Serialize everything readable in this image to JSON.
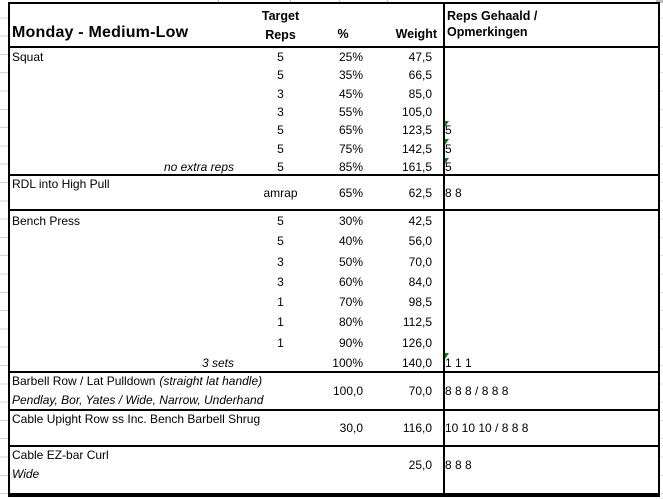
{
  "header": {
    "title": "Monday - Medium-Low",
    "target": "Target",
    "reps": "Reps",
    "percent": "%",
    "weight": "Weight",
    "result_line1": "Reps Gehaald /",
    "result_line2": "Opmerkingen"
  },
  "colors": {
    "flag_green": "#0e7d13",
    "gridline_gray": "#d4d4d4",
    "border_black": "#000000"
  },
  "icons": {
    "comment_indicator": "green-corner-triangle"
  },
  "sections": [
    {
      "type": "rows",
      "name": "Squat",
      "rows": [
        {
          "reps": "5",
          "pct": "25%",
          "weight": "47,5"
        },
        {
          "reps": "5",
          "pct": "35%",
          "weight": "66,5"
        },
        {
          "reps": "3",
          "pct": "45%",
          "weight": "85,0"
        },
        {
          "reps": "3",
          "pct": "55%",
          "weight": "105,0"
        },
        {
          "reps": "5",
          "pct": "65%",
          "weight": "123,5",
          "result": "5",
          "flag": true
        },
        {
          "reps": "5",
          "pct": "75%",
          "weight": "142,5",
          "result": "5",
          "flag": true
        },
        {
          "note": "no extra reps",
          "reps": "5",
          "pct": "85%",
          "weight": "161,5",
          "result": "5",
          "flag": true
        }
      ]
    },
    {
      "type": "block",
      "name": "RDL into High Pull",
      "reps": "amrap",
      "pct": "65%",
      "weight": "62,5",
      "result": "8 8"
    },
    {
      "type": "rows",
      "name": "Bench Press",
      "rows": [
        {
          "reps": "5",
          "pct": "30%",
          "weight": "42,5"
        },
        {
          "reps": "5",
          "pct": "40%",
          "weight": "56,0"
        },
        {
          "reps": "3",
          "pct": "50%",
          "weight": "70,0"
        },
        {
          "reps": "3",
          "pct": "60%",
          "weight": "84,0"
        },
        {
          "reps": "1",
          "pct": "70%",
          "weight": "98,5"
        },
        {
          "reps": "1",
          "pct": "80%",
          "weight": "112,5"
        },
        {
          "reps": "1",
          "pct": "90%",
          "weight": "126,0"
        },
        {
          "note": "3 sets",
          "pct": "100%",
          "weight": "140,0",
          "result": "1 1 1",
          "flag": true
        }
      ]
    },
    {
      "type": "block",
      "name": "Barbell Row / Lat Pulldown",
      "name_suffix_italic": "(straight lat handle)",
      "subtitle": "Pendlay, Bor, Yates / Wide, Narrow, Underhand",
      "pct": "100,0",
      "weight": "70,0",
      "result": "8 8 8 / 8 8 8"
    },
    {
      "type": "block",
      "name": "Cable Upight Row ss Inc. Bench Barbell Shrug",
      "pct": "30,0",
      "weight": "116,0",
      "result": "10 10 10 / 8 8 8"
    },
    {
      "type": "block",
      "name": "Cable EZ-bar Curl",
      "subtitle": "Wide",
      "weight": "25,0",
      "result": "8 8 8"
    }
  ]
}
